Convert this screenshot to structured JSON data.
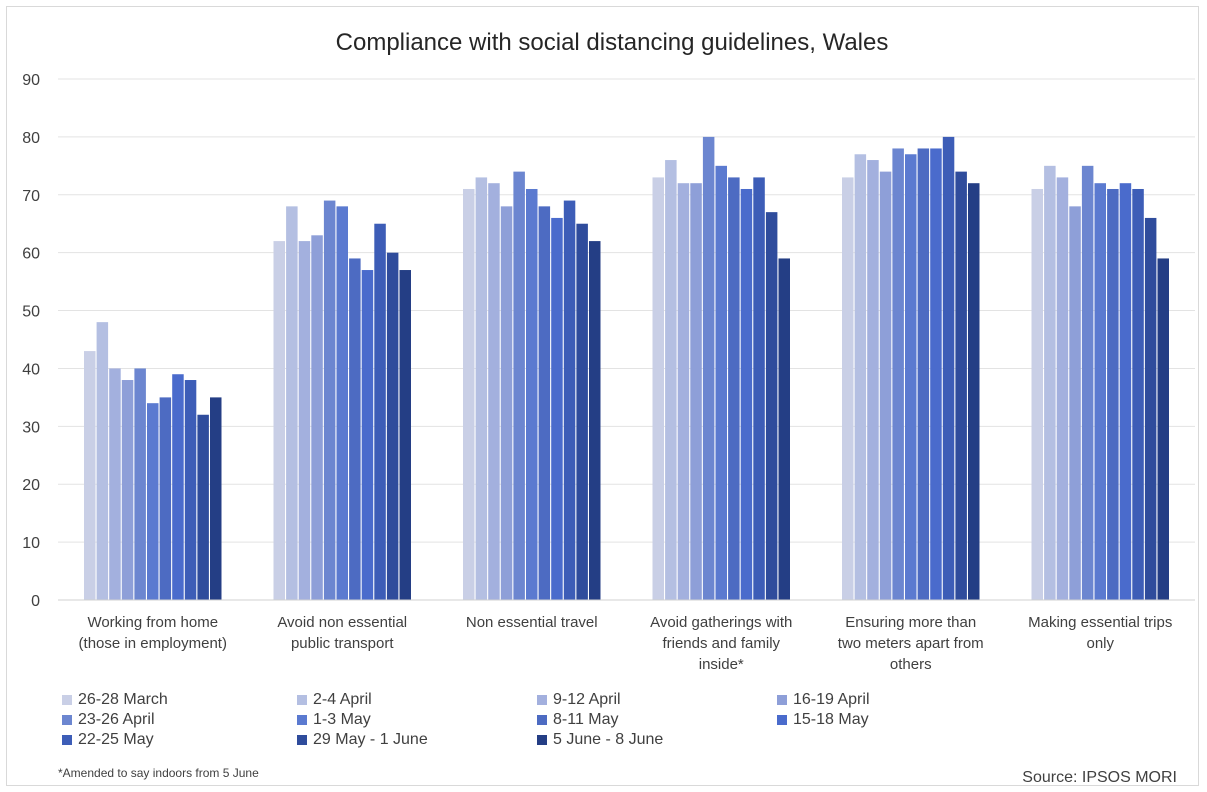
{
  "chart_data": {
    "type": "bar",
    "title": "Compliance with social distancing guidelines, Wales",
    "xlabel": "",
    "ylabel": "",
    "ylim": [
      0,
      90
    ],
    "yticks": [
      0,
      10,
      20,
      30,
      40,
      50,
      60,
      70,
      80,
      90
    ],
    "grid": true,
    "legend_position": "bottom",
    "categories": [
      [
        "Working from home",
        "(those in employment)"
      ],
      [
        "Avoid non essential",
        "public transport"
      ],
      [
        "Non essential travel"
      ],
      [
        "Avoid gatherings with",
        "friends and family",
        "inside*"
      ],
      [
        "Ensuring more than",
        "two meters apart from",
        "others"
      ],
      [
        "Making essential trips",
        "only"
      ]
    ],
    "series": [
      {
        "name": "26-28 March",
        "color": "#c9cfe6",
        "values": [
          43,
          62,
          71,
          73,
          73,
          71
        ]
      },
      {
        "name": "2-4 April",
        "color": "#b4bfe2",
        "values": [
          48,
          68,
          73,
          76,
          77,
          75
        ]
      },
      {
        "name": "9-12 April",
        "color": "#a3b0de",
        "values": [
          40,
          62,
          72,
          72,
          76,
          73
        ]
      },
      {
        "name": "16-19 April",
        "color": "#8e9fd8",
        "values": [
          38,
          63,
          68,
          72,
          74,
          68
        ]
      },
      {
        "name": "23-26 April",
        "color": "#6c86d0",
        "values": [
          40,
          69,
          74,
          80,
          78,
          75
        ]
      },
      {
        "name": "1-3 May",
        "color": "#5b7ad0",
        "values": [
          34,
          68,
          71,
          75,
          77,
          72
        ]
      },
      {
        "name": "8-11 May",
        "color": "#4d6bc2",
        "values": [
          35,
          59,
          68,
          73,
          78,
          71
        ]
      },
      {
        "name": "15-18 May",
        "color": "#4a6bcc",
        "values": [
          39,
          57,
          66,
          71,
          78,
          72
        ]
      },
      {
        "name": "22-25 May",
        "color": "#3d5db7",
        "values": [
          38,
          65,
          69,
          73,
          80,
          71
        ]
      },
      {
        "name": "29 May - 1 June",
        "color": "#2f4c9c",
        "values": [
          32,
          60,
          65,
          67,
          74,
          66
        ]
      },
      {
        "name": "5 June - 8 June",
        "color": "#243e85",
        "values": [
          35,
          57,
          62,
          59,
          72,
          59
        ]
      }
    ],
    "annotations": {
      "footnote": "*Amended to say indoors from 5 June",
      "source": "Source: IPSOS MORI"
    }
  }
}
